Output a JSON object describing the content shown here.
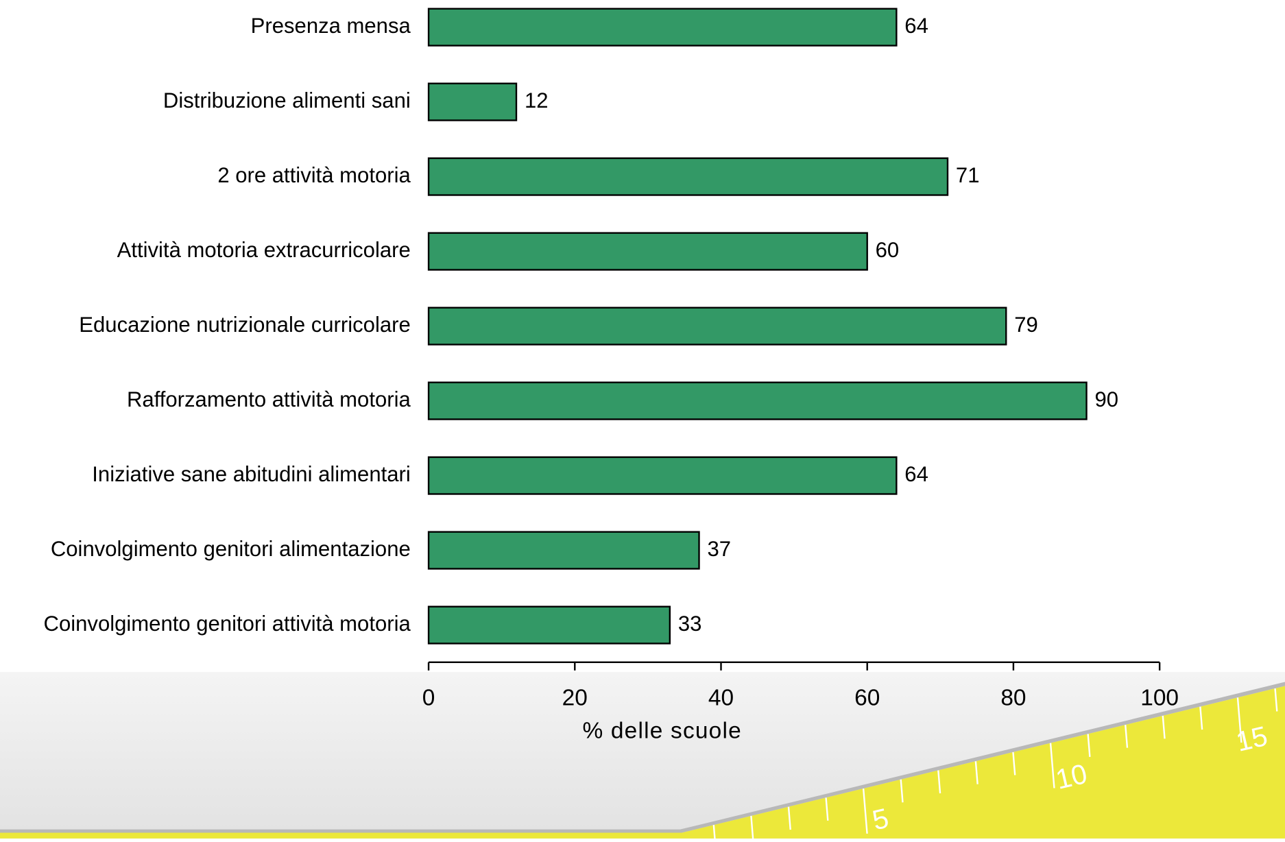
{
  "chart_data": {
    "type": "hbar",
    "categories": [
      "Presenza mensa",
      "Distribuzione alimenti sani",
      "2 ore attività motoria",
      "Attività motoria extracurricolare",
      "Educazione nutrizionale curricolare",
      "Rafforzamento attività motoria",
      "Iniziative sane abitudini alimentari",
      "Coinvolgimento genitori alimentazione",
      "Coinvolgimento genitori attività motoria"
    ],
    "values": [
      64,
      12,
      71,
      60,
      79,
      90,
      64,
      37,
      33
    ],
    "color": "#339966",
    "xlabel": "% delle scuole",
    "xlim": [
      0,
      100
    ],
    "xticks": [
      0,
      20,
      40,
      60,
      80,
      100
    ],
    "grid": false
  },
  "ruler_labels": [
    "5",
    "10",
    "15"
  ]
}
